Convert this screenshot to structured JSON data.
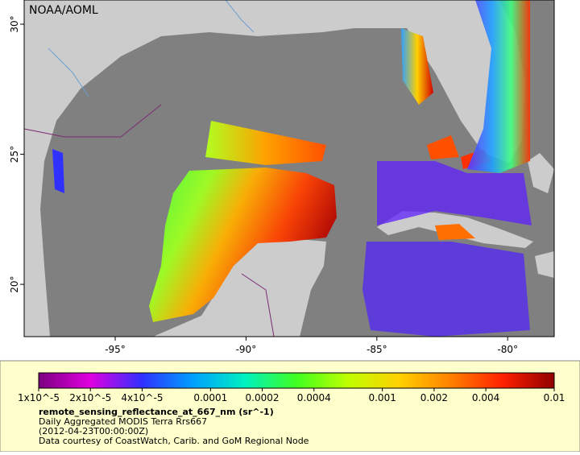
{
  "header": {
    "source": "NOAA/AOML"
  },
  "map": {
    "xlim": [
      -98.48,
      -78.22
    ],
    "ylim": [
      17.99,
      30.93
    ],
    "xticks": [
      {
        "value": -95,
        "label": "-95°"
      },
      {
        "value": -90,
        "label": "-90°"
      },
      {
        "value": -85,
        "label": "-85°"
      },
      {
        "value": -80,
        "label": "-80°"
      }
    ],
    "yticks": [
      {
        "value": 20,
        "label": "20°"
      },
      {
        "value": 25,
        "label": "25°"
      },
      {
        "value": 30,
        "label": "30°"
      }
    ]
  },
  "colorbar": {
    "scale": "log",
    "lim": [
      1e-05,
      0.01
    ],
    "colors": [
      "#7a0080",
      "#e000e0",
      "#3030ff",
      "#00a0ff",
      "#00f0c0",
      "#40ff20",
      "#c0ff00",
      "#ffd000",
      "#ff8000",
      "#ff2000",
      "#900000"
    ],
    "ticks": [
      {
        "value": 1e-05,
        "label": "1x10^-5"
      },
      {
        "value": 2e-05,
        "label": "2x10^-5"
      },
      {
        "value": 4e-05,
        "label": "4x10^-5"
      },
      0.0001,
      0.0002,
      0.0004,
      0.001,
      0.002,
      0.004,
      0.01
    ],
    "title": "remote_sensing_reflectance_at_667_nm (sr^-1)",
    "lines": [
      "Daily Aggregated MODIS Terra Rrs667",
      "(2012-04-23T00:00:00Z)",
      "Data courtesy of CoastWatch, Carib. and GoM Regional Node"
    ]
  }
}
